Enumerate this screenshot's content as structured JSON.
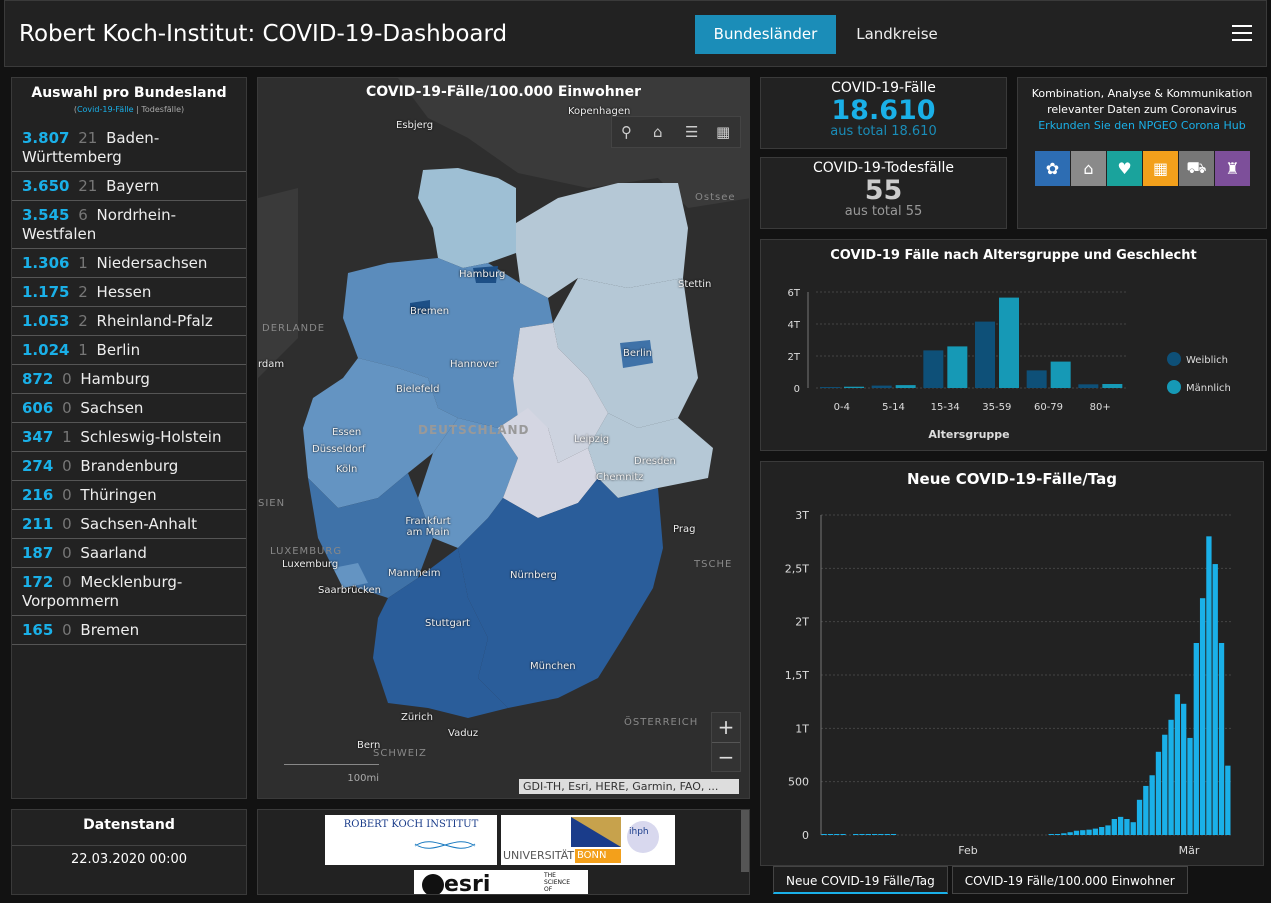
{
  "header": {
    "title": "Robert Koch-Institut: COVID-19-Dashboard",
    "tab_bundeslaender": "Bundesländer",
    "tab_landkreise": "Landkreise"
  },
  "left": {
    "title": "Auswahl pro Bundesland",
    "legend_cases": "Covid-19-Fälle",
    "legend_sep": "|",
    "legend_deaths": "Todesfälle",
    "rows": [
      {
        "cases": "3.807",
        "deaths": "21",
        "name": "Baden-Württemberg"
      },
      {
        "cases": "3.650",
        "deaths": "21",
        "name": "Bayern"
      },
      {
        "cases": "3.545",
        "deaths": "6",
        "name": "Nordrhein-Westfalen"
      },
      {
        "cases": "1.306",
        "deaths": "1",
        "name": "Niedersachsen"
      },
      {
        "cases": "1.175",
        "deaths": "2",
        "name": "Hessen"
      },
      {
        "cases": "1.053",
        "deaths": "2",
        "name": "Rheinland-Pfalz"
      },
      {
        "cases": "1.024",
        "deaths": "1",
        "name": "Berlin"
      },
      {
        "cases": "872",
        "deaths": "0",
        "name": "Hamburg"
      },
      {
        "cases": "606",
        "deaths": "0",
        "name": "Sachsen"
      },
      {
        "cases": "347",
        "deaths": "1",
        "name": "Schleswig-Holstein"
      },
      {
        "cases": "274",
        "deaths": "0",
        "name": "Brandenburg"
      },
      {
        "cases": "216",
        "deaths": "0",
        "name": "Thüringen"
      },
      {
        "cases": "211",
        "deaths": "0",
        "name": "Sachsen-Anhalt"
      },
      {
        "cases": "187",
        "deaths": "0",
        "name": "Saarland"
      },
      {
        "cases": "172",
        "deaths": "0",
        "name": "Mecklenburg-Vorpommern"
      },
      {
        "cases": "165",
        "deaths": "0",
        "name": "Bremen"
      }
    ]
  },
  "map": {
    "title": "COVID-19-Fälle/100.000 Einwohner",
    "attribution": "GDI-TH, Esri, HERE, Garmin, FAO, ...",
    "scale": "100mi",
    "tools": [
      "search-icon",
      "home-icon",
      "list-icon",
      "grid-icon"
    ],
    "zoom_in": "+",
    "zoom_out": "−",
    "labels": {
      "esbjerg": "Esbjerg",
      "kopenhagen": "Kopenhagen",
      "ostsee": "Ostsee",
      "hamburg": "Hamburg",
      "stettin": "Stettin",
      "bremen": "Bremen",
      "niederlande": "DERLANDE",
      "berlin": "Berlin",
      "hannover": "Hannover",
      "dam": "rdam",
      "bielefeld": "Bielefeld",
      "essen": "Essen",
      "duesseldorf": "Düsseldorf",
      "koeln": "Köln",
      "deutschland": "DEUTSCHLAND",
      "leipzig": "Leipzig",
      "dresden": "Dresden",
      "chemnitz": "Chemnitz",
      "sien": "SIEN",
      "frankfurt": "Frankfurt am Main",
      "prag": "Prag",
      "luxemburg_c": "LUXEMBURG",
      "luxemburg": "Luxemburg",
      "tsche": "TSCHE",
      "mannheim": "Mannheim",
      "nuernberg": "Nürnberg",
      "saarbruecken": "Saarbrücken",
      "stuttgart": "Stuttgart",
      "muenchen": "München",
      "zuerich": "Zürich",
      "vaduz": "Vaduz",
      "oesterreich": "ÖSTERREICH",
      "bern": "Bern",
      "schweiz": "SCHWEIZ"
    }
  },
  "stats": {
    "cases_label": "COVID-19-Fälle",
    "cases_value": "18.610",
    "cases_total": "aus total 18.610",
    "deaths_label": "COVID-19-Todesfälle",
    "deaths_value": "55",
    "deaths_total": "aus total 55"
  },
  "npgeo": {
    "text1": "Kombination, Analyse & Kommunikation",
    "text2": "relevanter Daten zum Coronavirus",
    "link": "Erkunden Sie den NPGEO Corona Hub",
    "icons": [
      {
        "name": "plant-icon",
        "color": "#2d6db3",
        "glyph": "✿"
      },
      {
        "name": "location-icon",
        "color": "#8a8a8a",
        "glyph": "⌂"
      },
      {
        "name": "health-icon",
        "color": "#1aa39c",
        "glyph": "♥"
      },
      {
        "name": "buildings-icon",
        "color": "#f3a01b",
        "glyph": "▦"
      },
      {
        "name": "car-icon",
        "color": "#777777",
        "glyph": "⛟"
      },
      {
        "name": "bell-icon",
        "color": "#7d4f9a",
        "glyph": "♜"
      }
    ]
  },
  "age_chart": {
    "title": "COVID-19 Fälle nach Altersgruppe und Geschlecht",
    "xlabel": "Altersgruppe",
    "colors": {
      "weiblich": "#0e5078",
      "maennlich": "#1699b6"
    }
  },
  "daily_chart": {
    "title": "Neue COVID-19-Fälle/Tag",
    "color": "#1ab0e8"
  },
  "chart_data": [
    {
      "type": "bar",
      "title": "COVID-19 Fälle nach Altersgruppe und Geschlecht",
      "xlabel": "Altersgruppe",
      "ylabel": "",
      "categories": [
        "0-4",
        "5-14",
        "15-34",
        "35-59",
        "60-79",
        "80+"
      ],
      "series": [
        {
          "name": "Weiblich",
          "values": [
            60,
            150,
            2350,
            4150,
            1100,
            230
          ]
        },
        {
          "name": "Männlich",
          "values": [
            80,
            180,
            2600,
            5650,
            1650,
            250
          ]
        }
      ],
      "ylim": [
        0,
        6000
      ],
      "yticks": [
        "0",
        "2T",
        "4T",
        "6T"
      ],
      "legend": "right"
    },
    {
      "type": "bar",
      "title": "Neue COVID-19-Fälle/Tag",
      "xlabel": "",
      "ylabel": "",
      "xticks": [
        "Feb",
        "Mär"
      ],
      "yticks": [
        "0",
        "500",
        "1T",
        "1,5T",
        "2T",
        "2,5T",
        "3T"
      ],
      "ylim": [
        0,
        3000
      ],
      "values": [
        2,
        1,
        1,
        1,
        0,
        2,
        1,
        1,
        1,
        2,
        1,
        2,
        0,
        0,
        0,
        0,
        0,
        0,
        0,
        0,
        0,
        0,
        0,
        0,
        0,
        0,
        0,
        0,
        0,
        0,
        0,
        0,
        0,
        0,
        0,
        0,
        1,
        4,
        16,
        26,
        40,
        45,
        50,
        60,
        75,
        90,
        150,
        170,
        150,
        120,
        330,
        460,
        560,
        780,
        940,
        1080,
        1320,
        1230,
        910,
        1800,
        2220,
        2800,
        2540,
        1800,
        650
      ]
    }
  ],
  "datenstand": {
    "title": "Datenstand",
    "value": "22.03.2020 00:00"
  },
  "logos": {
    "rki_line1": "ROBERT KOCH INSTITUT",
    "uni": "UNIVERSITÄT",
    "bonn": "BONN",
    "esri": "esri",
    "esri_tag1": "THE",
    "esri_tag2": "SCIENCE",
    "esri_tag3": "OF",
    "iph": "ihph"
  },
  "tabs": {
    "tab1": "Neue COVID-19 Fälle/Tag",
    "tab2": "COVID-19 Fälle/100.000 Einwohner"
  }
}
